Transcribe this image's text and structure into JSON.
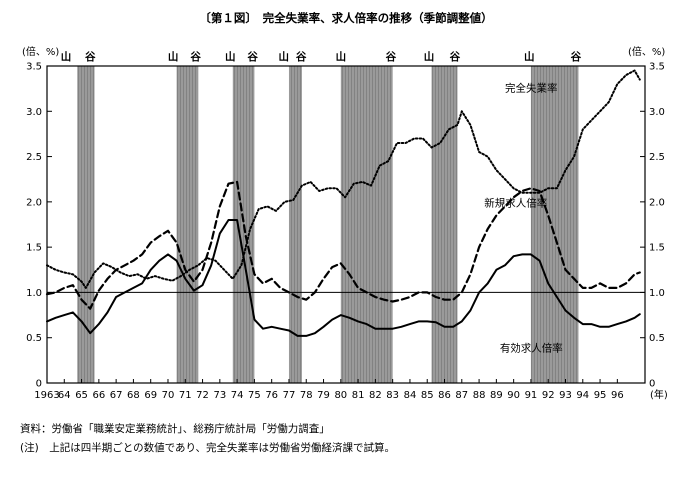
{
  "chart_data": {
    "type": "line",
    "title": "〔第１図〕　完全失業率、求人倍率の推移（季節調整値）",
    "left_axis_unit": "(倍、%)",
    "right_axis_unit": "(倍、%)",
    "x_unit": "(年)",
    "ylim": [
      0,
      3.5
    ],
    "xlim": [
      1963,
      1997.6
    ],
    "y_ticks": [
      "0",
      "0.5",
      "1.0",
      "1.5",
      "2.0",
      "2.5",
      "3.0",
      "3.5"
    ],
    "x_tick_labels": [
      "1963",
      "64",
      "65",
      "66",
      "67",
      "68",
      "69",
      "70",
      "71",
      "72",
      "73",
      "74",
      "75",
      "76",
      "77",
      "78",
      "79",
      "80",
      "81",
      "82",
      "83",
      "84",
      "85",
      "86",
      "87",
      "88",
      "89",
      "90",
      "91",
      "92",
      "93",
      "94",
      "95",
      "96"
    ],
    "reference_line": 1.0,
    "recession_shading": [
      {
        "start": 1964.75,
        "end": 1965.75
      },
      {
        "start": 1970.5,
        "end": 1971.75
      },
      {
        "start": 1973.75,
        "end": 1975.0
      },
      {
        "start": 1977.0,
        "end": 1977.75
      },
      {
        "start": 1980.0,
        "end": 1983.0
      },
      {
        "start": 1985.25,
        "end": 1986.75
      },
      {
        "start": 1991.0,
        "end": 1993.75
      }
    ],
    "cycle_labels": [
      {
        "text": "山",
        "x": 1964.1
      },
      {
        "text": "谷",
        "x": 1965.5
      },
      {
        "text": "山",
        "x": 1970.3
      },
      {
        "text": "谷",
        "x": 1971.6
      },
      {
        "text": "山",
        "x": 1973.6
      },
      {
        "text": "谷",
        "x": 1974.9
      },
      {
        "text": "山",
        "x": 1976.7
      },
      {
        "text": "谷",
        "x": 1977.7
      },
      {
        "text": "山",
        "x": 1980.0
      },
      {
        "text": "谷",
        "x": 1982.9
      },
      {
        "text": "山",
        "x": 1985.1
      },
      {
        "text": "谷",
        "x": 1986.6
      },
      {
        "text": "山",
        "x": 1990.9
      },
      {
        "text": "谷",
        "x": 1993.6
      }
    ],
    "series": [
      {
        "name": "完全失業率",
        "style": "dotted",
        "label_pos": [
          1989.5,
          3.22
        ],
        "points": [
          [
            1963.0,
            1.3
          ],
          [
            1963.5,
            1.25
          ],
          [
            1964.0,
            1.22
          ],
          [
            1964.5,
            1.2
          ],
          [
            1965.0,
            1.12
          ],
          [
            1965.25,
            1.05
          ],
          [
            1965.75,
            1.22
          ],
          [
            1966.25,
            1.32
          ],
          [
            1966.75,
            1.28
          ],
          [
            1967.25,
            1.22
          ],
          [
            1967.75,
            1.18
          ],
          [
            1968.25,
            1.2
          ],
          [
            1968.75,
            1.15
          ],
          [
            1969.25,
            1.18
          ],
          [
            1969.75,
            1.15
          ],
          [
            1970.25,
            1.13
          ],
          [
            1970.75,
            1.18
          ],
          [
            1971.25,
            1.25
          ],
          [
            1971.75,
            1.3
          ],
          [
            1972.25,
            1.38
          ],
          [
            1972.75,
            1.35
          ],
          [
            1973.25,
            1.25
          ],
          [
            1973.75,
            1.15
          ],
          [
            1974.25,
            1.3
          ],
          [
            1974.75,
            1.7
          ],
          [
            1975.25,
            1.92
          ],
          [
            1975.75,
            1.95
          ],
          [
            1976.25,
            1.9
          ],
          [
            1976.75,
            2.0
          ],
          [
            1977.25,
            2.02
          ],
          [
            1977.75,
            2.18
          ],
          [
            1978.25,
            2.22
          ],
          [
            1978.75,
            2.12
          ],
          [
            1979.25,
            2.15
          ],
          [
            1979.75,
            2.15
          ],
          [
            1980.25,
            2.05
          ],
          [
            1980.75,
            2.2
          ],
          [
            1981.25,
            2.22
          ],
          [
            1981.75,
            2.18
          ],
          [
            1982.25,
            2.4
          ],
          [
            1982.75,
            2.45
          ],
          [
            1983.25,
            2.65
          ],
          [
            1983.75,
            2.65
          ],
          [
            1984.25,
            2.7
          ],
          [
            1984.75,
            2.7
          ],
          [
            1985.25,
            2.6
          ],
          [
            1985.75,
            2.65
          ],
          [
            1986.25,
            2.8
          ],
          [
            1986.75,
            2.85
          ],
          [
            1987.0,
            3.0
          ],
          [
            1987.5,
            2.85
          ],
          [
            1988.0,
            2.55
          ],
          [
            1988.5,
            2.5
          ],
          [
            1989.0,
            2.35
          ],
          [
            1989.5,
            2.25
          ],
          [
            1990.0,
            2.15
          ],
          [
            1990.5,
            2.1
          ],
          [
            1991.0,
            2.1
          ],
          [
            1991.5,
            2.1
          ],
          [
            1992.0,
            2.15
          ],
          [
            1992.5,
            2.15
          ],
          [
            1993.0,
            2.35
          ],
          [
            1993.5,
            2.5
          ],
          [
            1994.0,
            2.8
          ],
          [
            1994.5,
            2.9
          ],
          [
            1995.0,
            3.0
          ],
          [
            1995.5,
            3.1
          ],
          [
            1996.0,
            3.3
          ],
          [
            1996.5,
            3.4
          ],
          [
            1997.0,
            3.45
          ],
          [
            1997.3,
            3.35
          ]
        ]
      },
      {
        "name": "新規求人倍率",
        "style": "dashed",
        "label_pos": [
          1988.3,
          1.95
        ],
        "points": [
          [
            1963.0,
            0.98
          ],
          [
            1963.5,
            1.0
          ],
          [
            1964.0,
            1.05
          ],
          [
            1964.5,
            1.08
          ],
          [
            1965.0,
            0.92
          ],
          [
            1965.5,
            0.82
          ],
          [
            1966.0,
            1.02
          ],
          [
            1966.5,
            1.15
          ],
          [
            1967.0,
            1.25
          ],
          [
            1967.5,
            1.3
          ],
          [
            1968.0,
            1.35
          ],
          [
            1968.5,
            1.42
          ],
          [
            1969.0,
            1.55
          ],
          [
            1969.5,
            1.62
          ],
          [
            1970.0,
            1.68
          ],
          [
            1970.5,
            1.55
          ],
          [
            1971.0,
            1.25
          ],
          [
            1971.5,
            1.12
          ],
          [
            1972.0,
            1.25
          ],
          [
            1972.5,
            1.55
          ],
          [
            1973.0,
            1.95
          ],
          [
            1973.5,
            2.2
          ],
          [
            1974.0,
            2.22
          ],
          [
            1974.5,
            1.62
          ],
          [
            1975.0,
            1.2
          ],
          [
            1975.5,
            1.1
          ],
          [
            1976.0,
            1.15
          ],
          [
            1976.5,
            1.05
          ],
          [
            1977.0,
            1.0
          ],
          [
            1977.5,
            0.95
          ],
          [
            1978.0,
            0.92
          ],
          [
            1978.5,
            1.0
          ],
          [
            1979.0,
            1.15
          ],
          [
            1979.5,
            1.28
          ],
          [
            1980.0,
            1.32
          ],
          [
            1980.5,
            1.2
          ],
          [
            1981.0,
            1.05
          ],
          [
            1981.5,
            1.0
          ],
          [
            1982.0,
            0.95
          ],
          [
            1982.5,
            0.92
          ],
          [
            1983.0,
            0.9
          ],
          [
            1983.5,
            0.92
          ],
          [
            1984.0,
            0.95
          ],
          [
            1984.5,
            1.0
          ],
          [
            1985.0,
            1.0
          ],
          [
            1985.5,
            0.95
          ],
          [
            1986.0,
            0.92
          ],
          [
            1986.5,
            0.92
          ],
          [
            1987.0,
            1.0
          ],
          [
            1987.5,
            1.2
          ],
          [
            1988.0,
            1.5
          ],
          [
            1988.5,
            1.7
          ],
          [
            1989.0,
            1.85
          ],
          [
            1989.5,
            1.95
          ],
          [
            1990.0,
            2.05
          ],
          [
            1990.5,
            2.12
          ],
          [
            1991.0,
            2.15
          ],
          [
            1991.5,
            2.12
          ],
          [
            1992.0,
            1.85
          ],
          [
            1992.5,
            1.55
          ],
          [
            1993.0,
            1.25
          ],
          [
            1993.5,
            1.15
          ],
          [
            1994.0,
            1.05
          ],
          [
            1994.5,
            1.05
          ],
          [
            1995.0,
            1.1
          ],
          [
            1995.5,
            1.05
          ],
          [
            1996.0,
            1.05
          ],
          [
            1996.5,
            1.1
          ],
          [
            1997.0,
            1.2
          ],
          [
            1997.3,
            1.22
          ]
        ]
      },
      {
        "name": "有効求人倍率",
        "style": "solid",
        "label_pos": [
          1989.2,
          0.35
        ],
        "points": [
          [
            1963.0,
            0.68
          ],
          [
            1963.5,
            0.72
          ],
          [
            1964.0,
            0.75
          ],
          [
            1964.5,
            0.78
          ],
          [
            1965.0,
            0.68
          ],
          [
            1965.5,
            0.55
          ],
          [
            1966.0,
            0.65
          ],
          [
            1966.5,
            0.78
          ],
          [
            1967.0,
            0.95
          ],
          [
            1967.5,
            1.0
          ],
          [
            1968.0,
            1.05
          ],
          [
            1968.5,
            1.1
          ],
          [
            1969.0,
            1.25
          ],
          [
            1969.5,
            1.35
          ],
          [
            1970.0,
            1.42
          ],
          [
            1970.5,
            1.35
          ],
          [
            1971.0,
            1.15
          ],
          [
            1971.5,
            1.02
          ],
          [
            1972.0,
            1.08
          ],
          [
            1972.5,
            1.3
          ],
          [
            1973.0,
            1.65
          ],
          [
            1973.5,
            1.8
          ],
          [
            1974.0,
            1.8
          ],
          [
            1974.5,
            1.25
          ],
          [
            1975.0,
            0.7
          ],
          [
            1975.5,
            0.6
          ],
          [
            1976.0,
            0.62
          ],
          [
            1976.5,
            0.6
          ],
          [
            1977.0,
            0.58
          ],
          [
            1977.5,
            0.52
          ],
          [
            1978.0,
            0.52
          ],
          [
            1978.5,
            0.55
          ],
          [
            1979.0,
            0.62
          ],
          [
            1979.5,
            0.7
          ],
          [
            1980.0,
            0.75
          ],
          [
            1980.5,
            0.72
          ],
          [
            1981.0,
            0.68
          ],
          [
            1981.5,
            0.65
          ],
          [
            1982.0,
            0.6
          ],
          [
            1982.5,
            0.6
          ],
          [
            1983.0,
            0.6
          ],
          [
            1983.5,
            0.62
          ],
          [
            1984.0,
            0.65
          ],
          [
            1984.5,
            0.68
          ],
          [
            1985.0,
            0.68
          ],
          [
            1985.5,
            0.67
          ],
          [
            1986.0,
            0.62
          ],
          [
            1986.5,
            0.62
          ],
          [
            1987.0,
            0.68
          ],
          [
            1987.5,
            0.8
          ],
          [
            1988.0,
            1.0
          ],
          [
            1988.5,
            1.1
          ],
          [
            1989.0,
            1.25
          ],
          [
            1989.5,
            1.3
          ],
          [
            1990.0,
            1.4
          ],
          [
            1990.5,
            1.42
          ],
          [
            1991.0,
            1.42
          ],
          [
            1991.5,
            1.35
          ],
          [
            1992.0,
            1.1
          ],
          [
            1992.5,
            0.95
          ],
          [
            1993.0,
            0.8
          ],
          [
            1993.5,
            0.72
          ],
          [
            1994.0,
            0.65
          ],
          [
            1994.5,
            0.65
          ],
          [
            1995.0,
            0.62
          ],
          [
            1995.5,
            0.62
          ],
          [
            1996.0,
            0.65
          ],
          [
            1996.5,
            0.68
          ],
          [
            1997.0,
            0.72
          ],
          [
            1997.3,
            0.76
          ]
        ]
      }
    ]
  },
  "notes": {
    "source": "資料：労働省「職業安定業務統計」、総務庁統計局「労働力調査」",
    "note": "(注)　上記は四半期ごとの数値であり、完全失業率は労働省労働経済課で試算。"
  }
}
